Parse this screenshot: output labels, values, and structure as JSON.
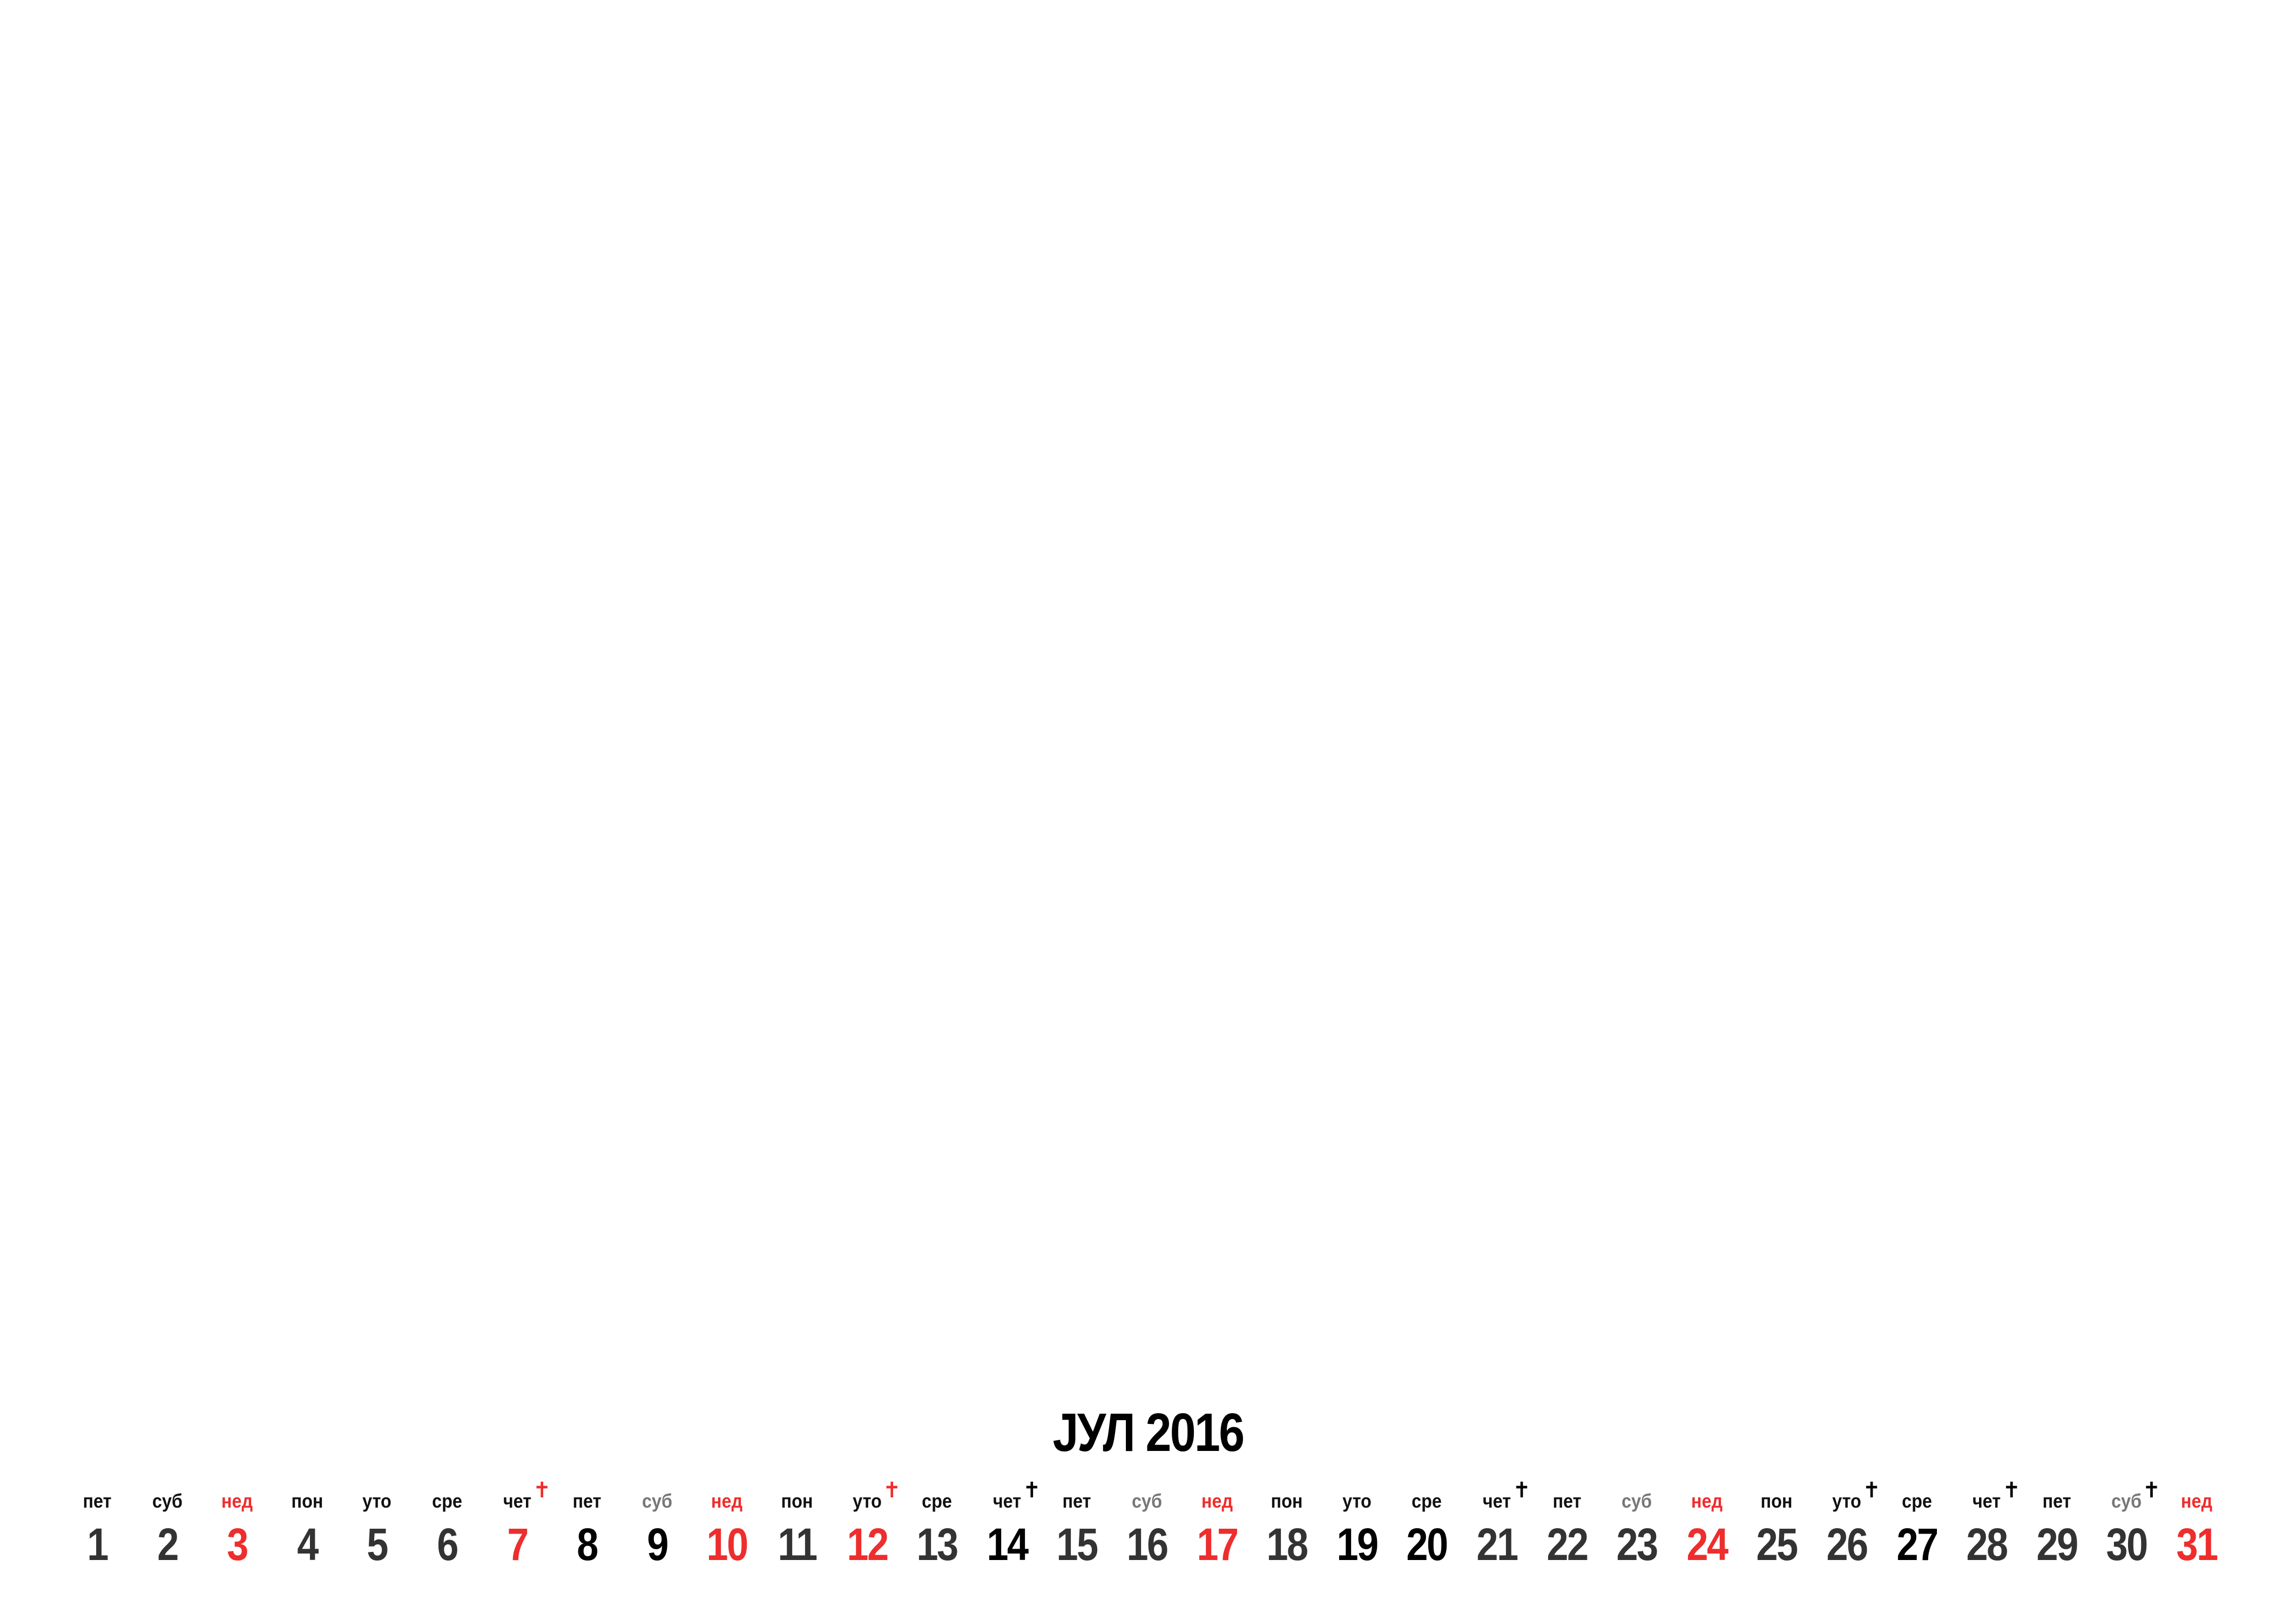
{
  "calendar": {
    "title": "ЈУЛ 2016",
    "colors": {
      "regular_weekday": "#111111",
      "regular_number": "#333333",
      "saturday_weekday": "#777777",
      "sunday": "#ee2d2d",
      "red_holiday": "#ee2d2d",
      "black_holiday": "#000000"
    },
    "days": [
      {
        "weekday": "пет",
        "number": "1",
        "type": "regular",
        "holiday": "none"
      },
      {
        "weekday": "суб",
        "number": "2",
        "type": "regular",
        "holiday": "none"
      },
      {
        "weekday": "нед",
        "number": "3",
        "type": "sunday",
        "holiday": "none"
      },
      {
        "weekday": "пон",
        "number": "4",
        "type": "regular",
        "holiday": "none"
      },
      {
        "weekday": "уто",
        "number": "5",
        "type": "regular",
        "holiday": "none"
      },
      {
        "weekday": "сре",
        "number": "6",
        "type": "regular",
        "holiday": "none"
      },
      {
        "weekday": "чет",
        "number": "7",
        "type": "red-holiday",
        "holiday": "red",
        "cross": "✝"
      },
      {
        "weekday": "пет",
        "number": "8",
        "type": "black",
        "holiday": "none"
      },
      {
        "weekday": "суб",
        "number": "9",
        "type": "black",
        "holiday": "none",
        "weekday_style": "saturday"
      },
      {
        "weekday": "нед",
        "number": "10",
        "type": "sunday",
        "holiday": "none"
      },
      {
        "weekday": "пон",
        "number": "11",
        "type": "regular",
        "holiday": "none"
      },
      {
        "weekday": "уто",
        "number": "12",
        "type": "red-holiday",
        "holiday": "red",
        "cross": "✝"
      },
      {
        "weekday": "сре",
        "number": "13",
        "type": "regular",
        "holiday": "none"
      },
      {
        "weekday": "чет",
        "number": "14",
        "type": "black",
        "holiday": "black",
        "cross": "✝"
      },
      {
        "weekday": "пет",
        "number": "15",
        "type": "regular",
        "holiday": "none"
      },
      {
        "weekday": "суб",
        "number": "16",
        "type": "regular",
        "holiday": "none",
        "weekday_style": "saturday"
      },
      {
        "weekday": "нед",
        "number": "17",
        "type": "sunday",
        "holiday": "none"
      },
      {
        "weekday": "пон",
        "number": "18",
        "type": "regular",
        "holiday": "none"
      },
      {
        "weekday": "уто",
        "number": "19",
        "type": "black",
        "holiday": "none"
      },
      {
        "weekday": "сре",
        "number": "20",
        "type": "black",
        "holiday": "none"
      },
      {
        "weekday": "чет",
        "number": "21",
        "type": "regular",
        "holiday": "black",
        "cross": "✝"
      },
      {
        "weekday": "пет",
        "number": "22",
        "type": "regular",
        "holiday": "none"
      },
      {
        "weekday": "суб",
        "number": "23",
        "type": "regular",
        "holiday": "none",
        "weekday_style": "saturday"
      },
      {
        "weekday": "нед",
        "number": "24",
        "type": "sunday",
        "holiday": "none"
      },
      {
        "weekday": "пон",
        "number": "25",
        "type": "regular",
        "holiday": "none"
      },
      {
        "weekday": "уто",
        "number": "26",
        "type": "regular",
        "holiday": "black",
        "cross": "✝"
      },
      {
        "weekday": "сре",
        "number": "27",
        "type": "black",
        "holiday": "none"
      },
      {
        "weekday": "чет",
        "number": "28",
        "type": "regular",
        "holiday": "black",
        "cross": "✝"
      },
      {
        "weekday": "пет",
        "number": "29",
        "type": "regular",
        "holiday": "none"
      },
      {
        "weekday": "суб",
        "number": "30",
        "type": "regular",
        "holiday": "black",
        "cross": "✝",
        "weekday_style": "saturday"
      },
      {
        "weekday": "нед",
        "number": "31",
        "type": "sunday",
        "holiday": "none"
      }
    ]
  }
}
